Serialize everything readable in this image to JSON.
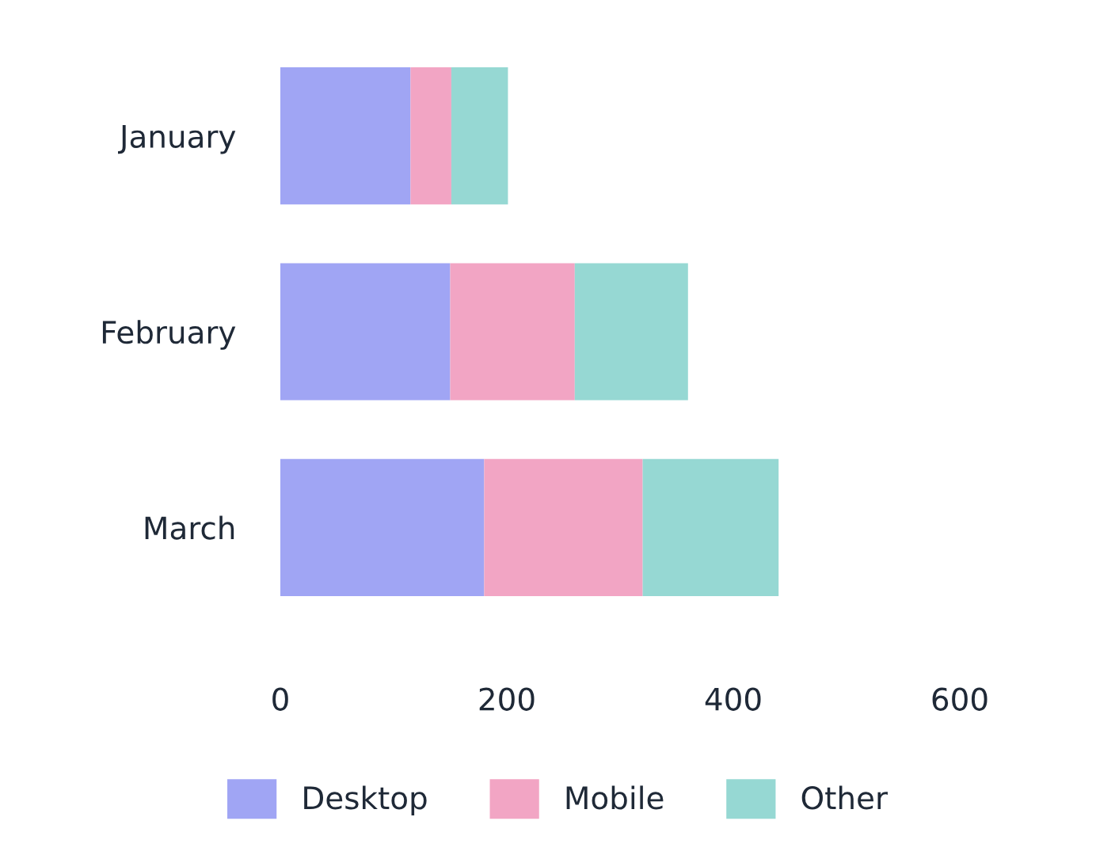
{
  "chart_data": {
    "type": "bar",
    "orientation": "horizontal",
    "stacked": true,
    "categories": [
      "January",
      "February",
      "March"
    ],
    "series": [
      {
        "name": "Desktop",
        "color": "#a0a5f4",
        "values": [
          115,
          150,
          180
        ]
      },
      {
        "name": "Mobile",
        "color": "#f2a5c4",
        "values": [
          36,
          110,
          140
        ]
      },
      {
        "name": "Other",
        "color": "#96d8d3",
        "values": [
          50,
          100,
          120
        ]
      }
    ],
    "xlim": [
      0,
      600
    ],
    "xticks": [
      0,
      200,
      400,
      600
    ],
    "grid": false,
    "legend": "bottom"
  }
}
